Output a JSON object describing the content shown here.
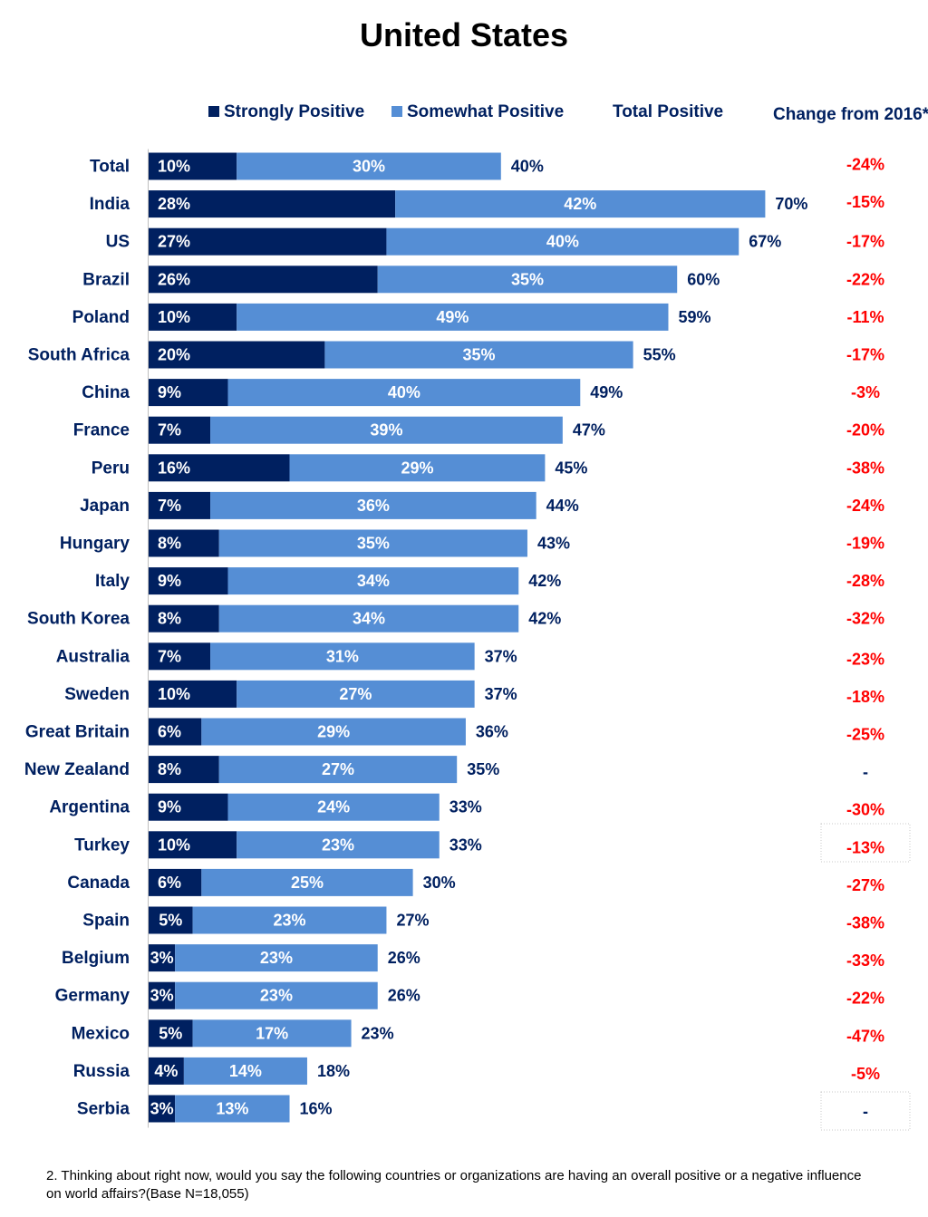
{
  "chart_data": {
    "type": "bar",
    "orientation": "horizontal",
    "stacked": true,
    "title": "United States",
    "categories": [
      "Total",
      "India",
      "US",
      "Brazil",
      "Poland",
      "South Africa",
      "China",
      "France",
      "Peru",
      "Japan",
      "Hungary",
      "Italy",
      "South Korea",
      "Australia",
      "Sweden",
      "Great Britain",
      "New Zealand",
      "Argentina",
      "Turkey",
      "Canada",
      "Spain",
      "Belgium",
      "Germany",
      "Mexico",
      "Russia",
      "Serbia"
    ],
    "series": [
      {
        "name": "Strongly Positive",
        "color": "#002060",
        "values": [
          10,
          28,
          27,
          26,
          10,
          20,
          9,
          7,
          16,
          7,
          8,
          9,
          8,
          7,
          10,
          6,
          8,
          9,
          10,
          6,
          5,
          3,
          3,
          5,
          4,
          3
        ]
      },
      {
        "name": "Somewhat Positive",
        "color": "#558ED5",
        "values": [
          30,
          42,
          40,
          35,
          49,
          35,
          40,
          39,
          29,
          36,
          35,
          34,
          34,
          31,
          27,
          29,
          27,
          24,
          23,
          25,
          23,
          23,
          23,
          17,
          14,
          13
        ]
      }
    ],
    "total_positive": {
      "name": "Total Positive",
      "values": [
        40,
        70,
        67,
        60,
        59,
        55,
        49,
        47,
        45,
        44,
        43,
        42,
        42,
        37,
        37,
        36,
        35,
        33,
        33,
        30,
        27,
        26,
        26,
        23,
        18,
        16
      ]
    },
    "change_from_2016": {
      "name": "Change from 2016*",
      "values": [
        "-24%",
        "-15%",
        "-17%",
        "-22%",
        "-11%",
        "-17%",
        "-3%",
        "-20%",
        "-38%",
        "-24%",
        "-19%",
        "-28%",
        "-32%",
        "-23%",
        "-18%",
        "-25%",
        "-",
        "-30%",
        "-13%",
        "-27%",
        "-38%",
        "-33%",
        "-22%",
        "-47%",
        "-5%",
        "-"
      ]
    },
    "xlim": [
      0,
      70
    ],
    "value_suffix": "%",
    "grid": false,
    "legend_position": "top"
  },
  "legend": {
    "strongly": "Strongly Positive",
    "somewhat": "Somewhat Positive",
    "total": "Total Positive",
    "change": "Change from 2016*"
  },
  "colors": {
    "dark": "#002060",
    "light": "#558ED5",
    "negative": "#FF0000"
  },
  "footnote": "2. Thinking about right now, would you say the following countries or organizations are having an overall positive or a negative influence on world affairs?(Base N=18,055)"
}
